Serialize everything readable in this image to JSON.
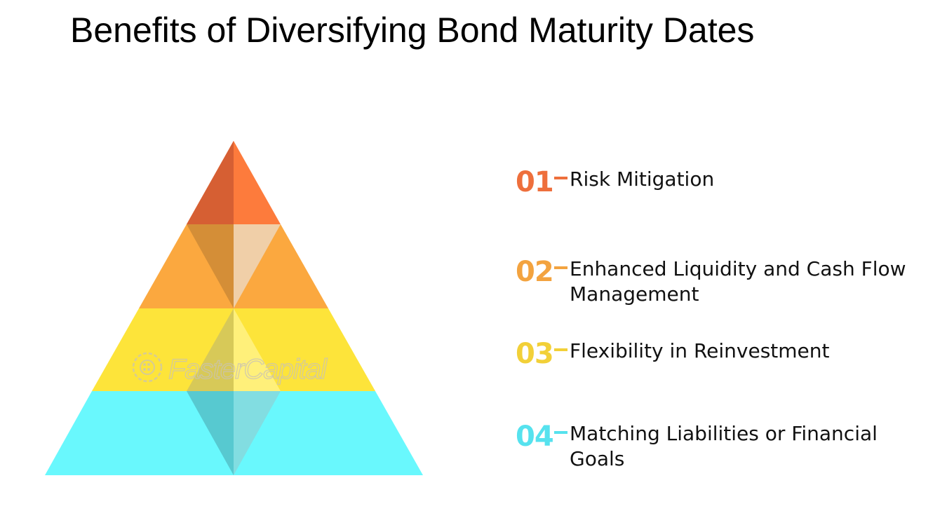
{
  "title": "Benefits of Diversifying Bond Maturity Dates",
  "watermark": "FasterCapital",
  "colors": {
    "level1": "#fd7b3c",
    "level2": "#fba83f",
    "level3": "#fde43a",
    "level4": "#69f8fd"
  },
  "items": [
    {
      "number": "01",
      "label": "Risk Mitigation",
      "color": "#ee6f3c"
    },
    {
      "number": "02",
      "label": "Enhanced Liquidity and Cash Flow Management",
      "color": "#f3a33f"
    },
    {
      "number": "03",
      "label": "Flexibility in Reinvestment",
      "color": "#f2d038"
    },
    {
      "number": "04",
      "label": "Matching Liabilities or Financial Goals",
      "color": "#56e2ee"
    }
  ]
}
